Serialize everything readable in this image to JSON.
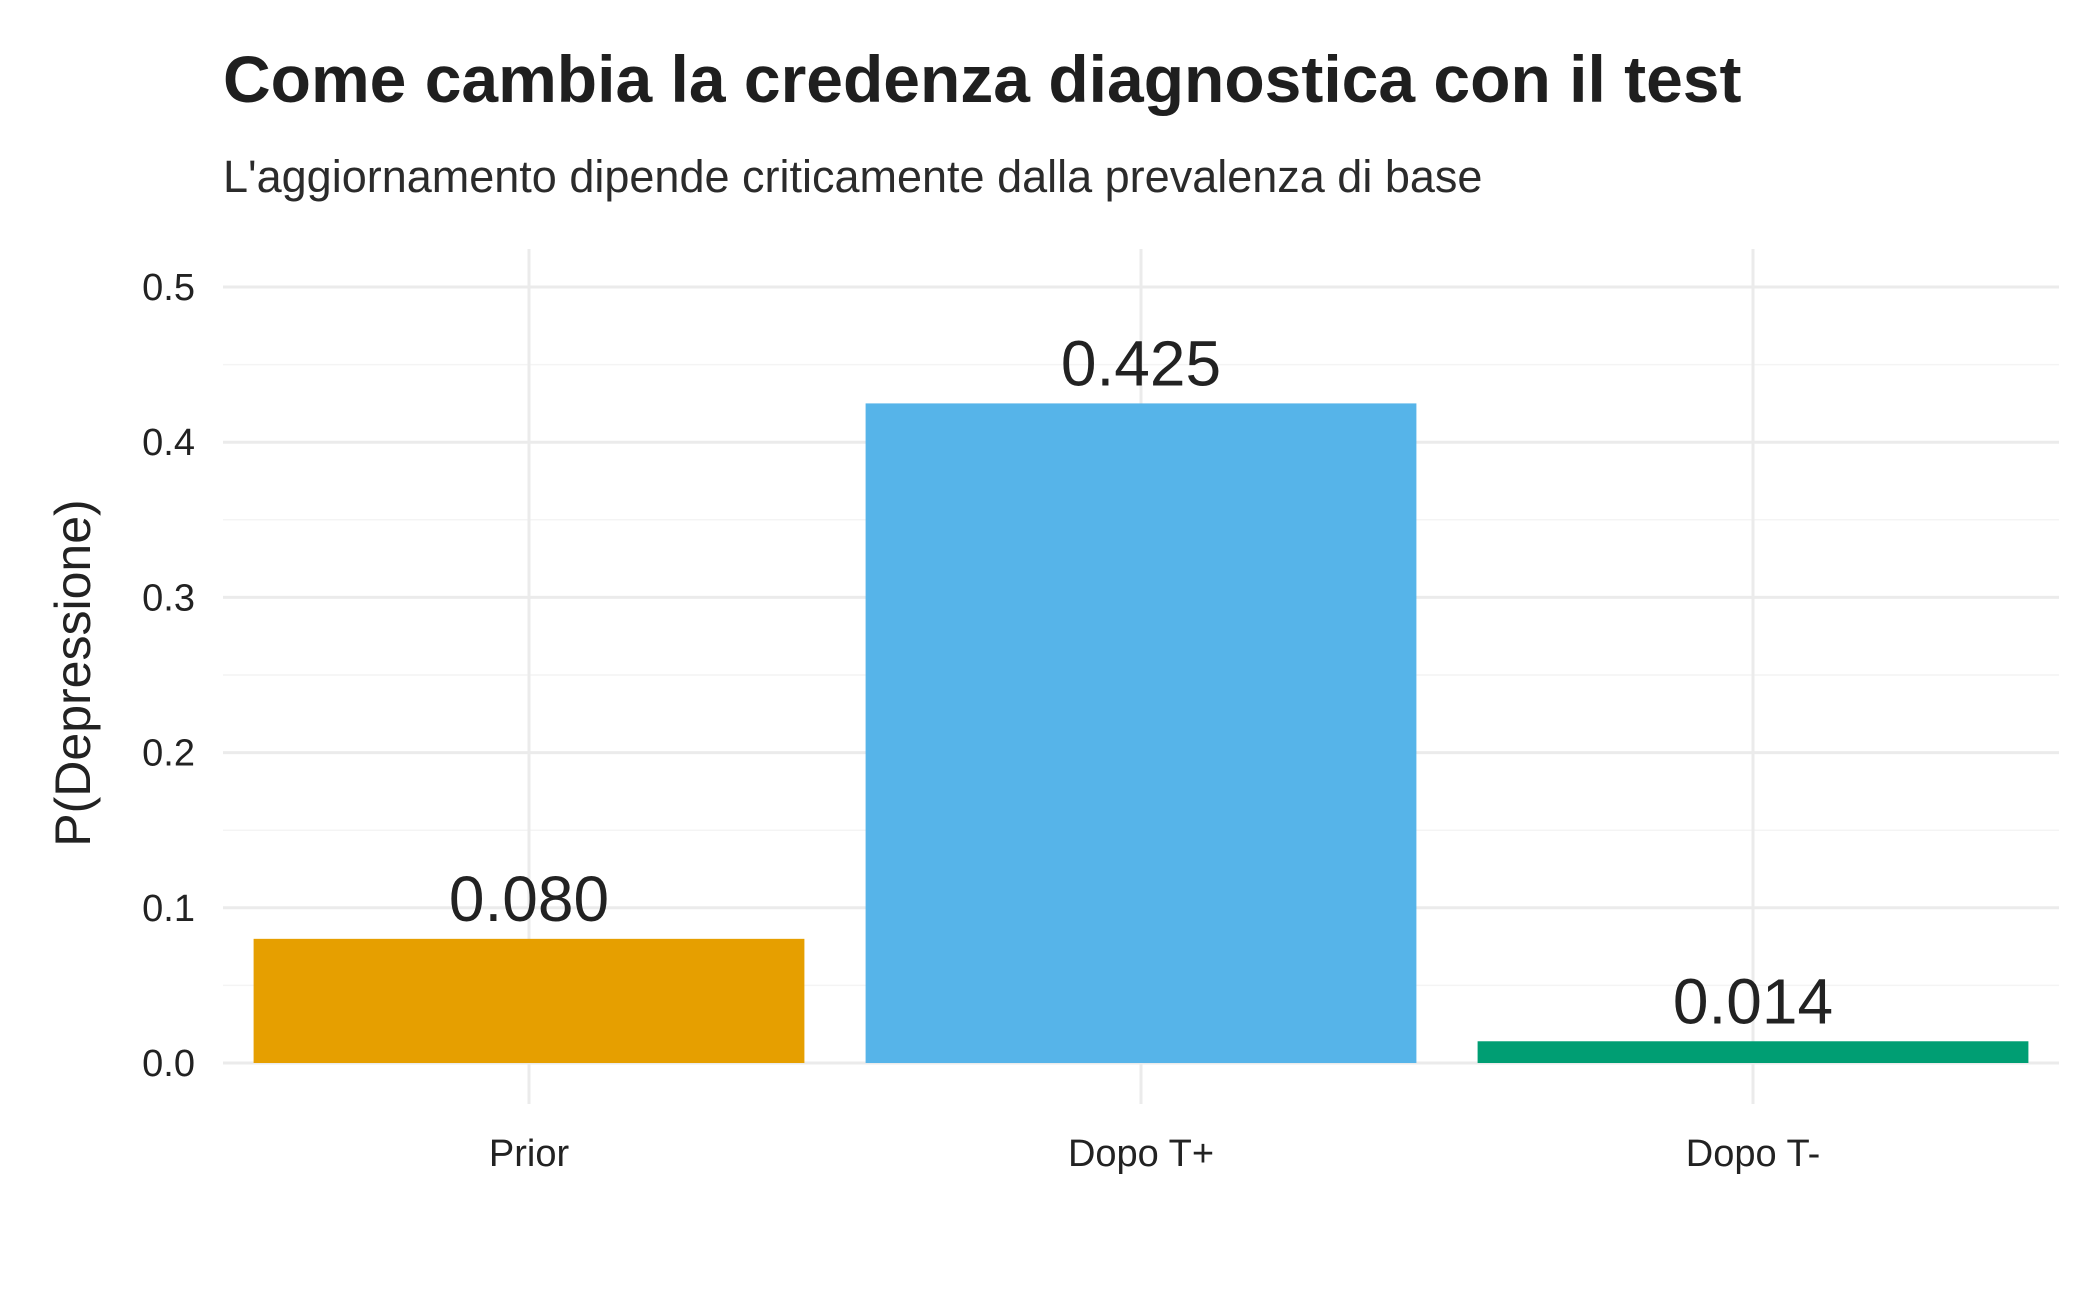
{
  "chart_data": {
    "type": "bar",
    "title": "Come cambia la credenza diagnostica con il test",
    "subtitle": "L'aggiornamento dipende criticamente dalla prevalenza di base",
    "xlabel": "",
    "ylabel": "P(Depressione)",
    "categories": [
      "Prior",
      "Dopo T+",
      "Dopo T-"
    ],
    "values": [
      0.08,
      0.425,
      0.014
    ],
    "data_labels": [
      "0.080",
      "0.425",
      "0.014"
    ],
    "colors": [
      "#E69F00",
      "#56B4E9",
      "#009E73"
    ],
    "ylim": [
      0,
      0.5
    ],
    "yticks": [
      0.0,
      0.1,
      0.2,
      0.3,
      0.4,
      0.5
    ],
    "ytick_labels": [
      "0.0",
      "0.1",
      "0.2",
      "0.3",
      "0.4",
      "0.5"
    ],
    "grid": true,
    "legend": "none"
  }
}
